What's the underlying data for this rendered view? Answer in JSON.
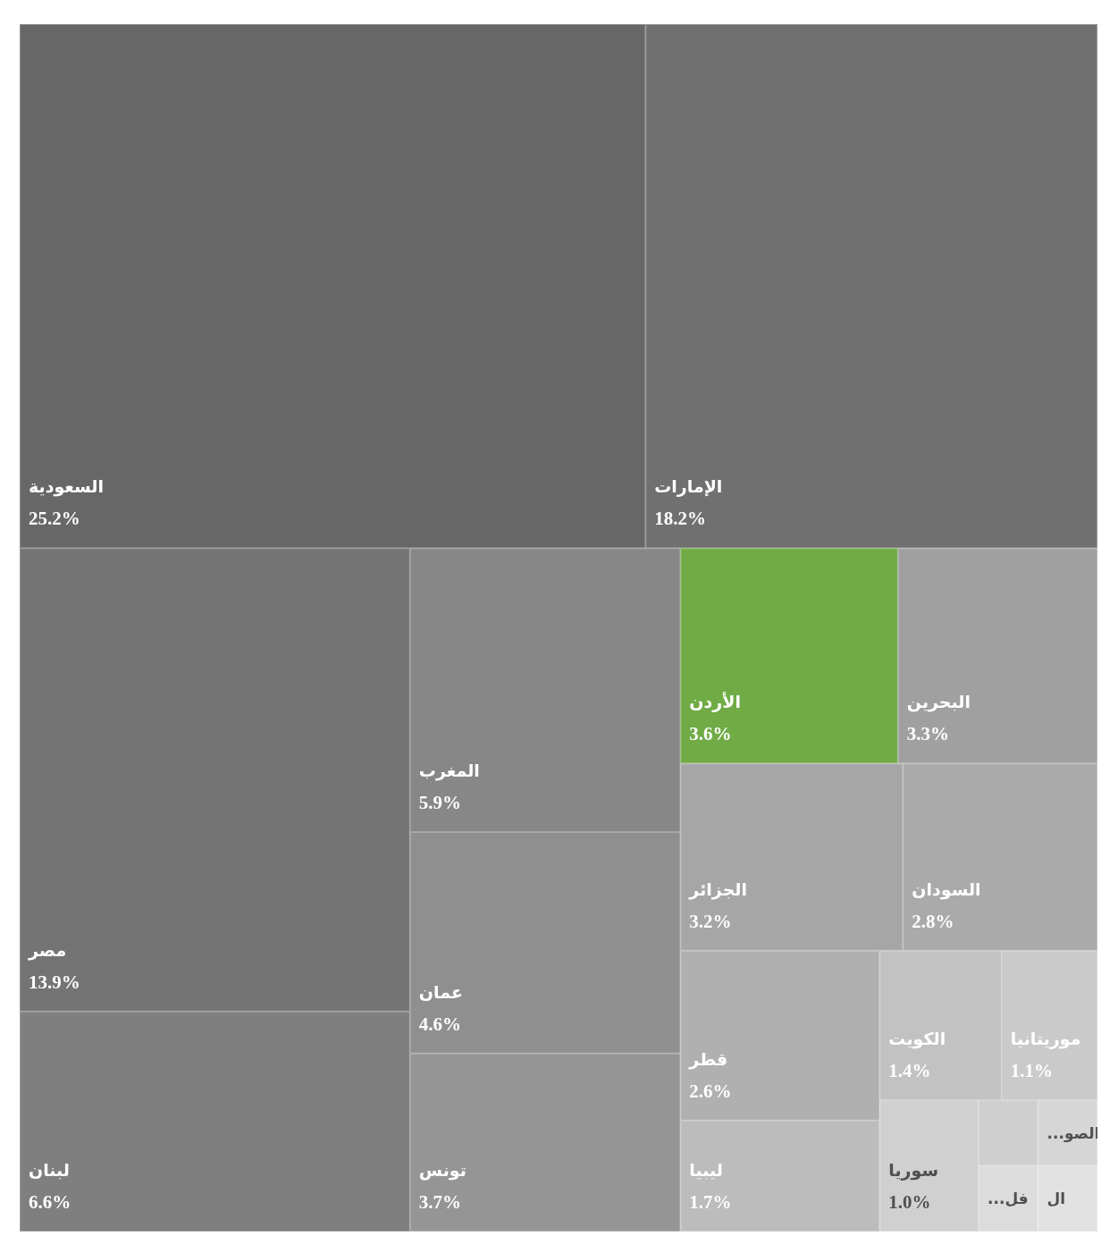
{
  "chart_data": {
    "type": "other",
    "categories": [
      "السعودية",
      "الإمارات",
      "مصر",
      "لبنان",
      "المغرب",
      "عمان",
      "تونس",
      "الأردن",
      "البحرين",
      "الجزائر",
      "السودان",
      "قطر",
      "ليبيا",
      "الكويت",
      "موريتانيا",
      "سوريا",
      null,
      "الصو...",
      "فل...",
      "ال"
    ],
    "values": [
      25.2,
      18.2,
      13.9,
      6.6,
      5.9,
      4.6,
      3.7,
      3.6,
      3.3,
      3.2,
      2.8,
      2.6,
      1.7,
      1.4,
      1.1,
      1.0,
      null,
      null,
      null,
      null
    ],
    "value_labels": [
      "25.2%",
      "18.2%",
      "13.9%",
      "6.6%",
      "5.9%",
      "4.6%",
      "3.7%",
      "3.6%",
      "3.3%",
      "3.2%",
      "2.8%",
      "2.6%",
      "1.7%",
      "1.4%",
      "1.1%",
      "1.0%",
      null,
      null,
      null,
      null
    ],
    "colors": [
      "#676767",
      "#707070",
      "#747474",
      "#7f7f7f",
      "#878787",
      "#8f8f8f",
      "#959595",
      "#70ab46",
      "#a0a0a0",
      "#a6a6a6",
      "#aaaaaa",
      "#b0b0b0",
      "#bcbcbc",
      "#c2c2c2",
      "#cacaca",
      "#d0d0d0",
      "#cfcfcf",
      "#d6d6d6",
      "#dcdcdc",
      "#e2e2e2"
    ]
  }
}
